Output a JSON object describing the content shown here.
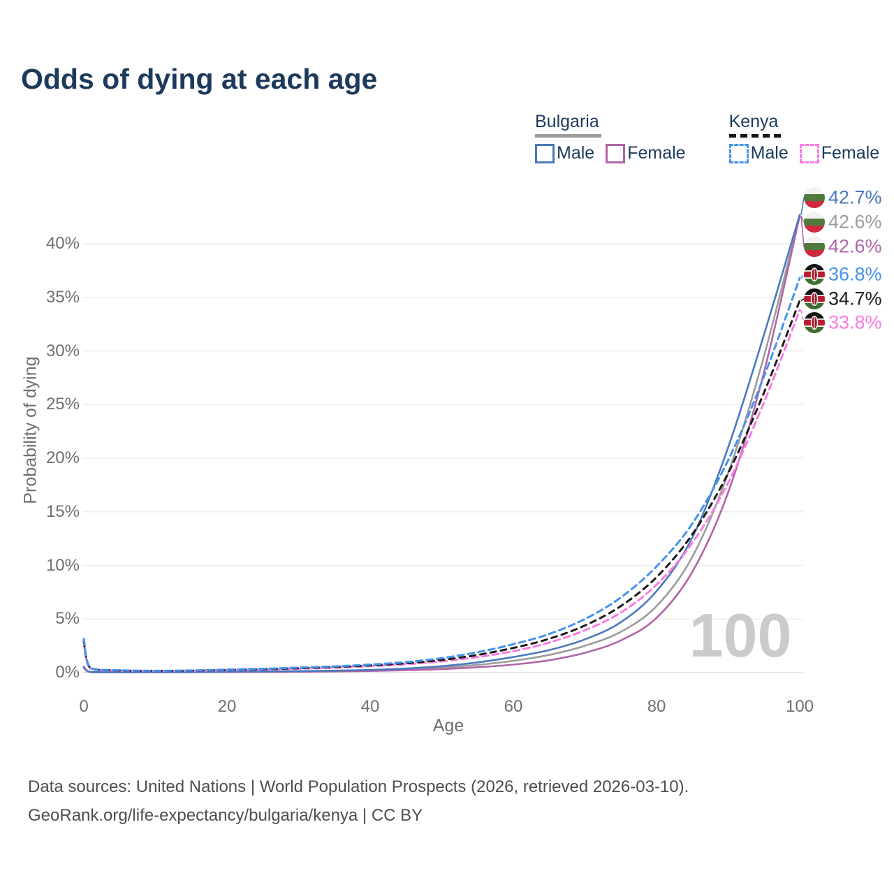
{
  "title": "Odds of dying at each age",
  "watermark": "100",
  "footer": {
    "line1": "Data sources: United Nations | World Population Prospects (2026, retrieved 2026-03-10).",
    "line2": "GeoRank.org/life-expectancy/bulgaria/kenya | CC BY"
  },
  "legend": {
    "groups": [
      {
        "country": "Bulgaria",
        "line_style": "solid",
        "underline_color": "#9c9c9c",
        "items": [
          {
            "label": "Male",
            "color": "#4a79bd",
            "style": "solid"
          },
          {
            "label": "Female",
            "color": "#b264a8",
            "style": "solid"
          }
        ]
      },
      {
        "country": "Kenya",
        "line_style": "dashed",
        "underline_color": "#161616",
        "items": [
          {
            "label": "Male",
            "color": "#4693ec",
            "style": "dashed"
          },
          {
            "label": "Female",
            "color": "#fb7ae0",
            "style": "dashed"
          }
        ]
      }
    ]
  },
  "axes": {
    "x": {
      "label": "Age",
      "ticks": [
        0,
        20,
        40,
        60,
        80,
        100
      ],
      "range": [
        0,
        100
      ]
    },
    "y": {
      "label": "Probability of dying",
      "tick_labels": [
        "0%",
        "5%",
        "10%",
        "15%",
        "20%",
        "25%",
        "30%",
        "35%",
        "40%"
      ],
      "tick_values": [
        0,
        5,
        10,
        15,
        20,
        25,
        30,
        35,
        40
      ],
      "range": [
        0,
        44.5
      ],
      "grid": true
    }
  },
  "chart_data": {
    "type": "line",
    "title": "Odds of dying at each age",
    "xlabel": "Age",
    "ylabel": "Probability of dying",
    "x": [
      0,
      1,
      5,
      10,
      15,
      20,
      25,
      30,
      35,
      40,
      45,
      50,
      55,
      60,
      65,
      70,
      75,
      80,
      85,
      90,
      95,
      100
    ],
    "unit": "percent",
    "series": [
      {
        "name": "Bulgaria — Male",
        "country": "Bulgaria",
        "sex": "male",
        "style": "solid",
        "color": "#4a79bd",
        "flag": "bulgaria-flag",
        "end_label": "42.7%",
        "values": [
          0.55,
          0.05,
          0.03,
          0.03,
          0.06,
          0.09,
          0.11,
          0.14,
          0.18,
          0.25,
          0.38,
          0.6,
          0.95,
          1.45,
          2.1,
          3.1,
          4.7,
          7.6,
          12.6,
          21.0,
          31.5,
          42.7
        ]
      },
      {
        "name": "Bulgaria — Both sexes",
        "country": "Bulgaria",
        "sex": "both",
        "style": "solid",
        "color": "#9c9c9c",
        "flag": "bulgaria-flag",
        "end_label": "42.6%",
        "values": [
          0.5,
          0.045,
          0.025,
          0.025,
          0.05,
          0.08,
          0.095,
          0.12,
          0.15,
          0.21,
          0.3,
          0.47,
          0.72,
          1.1,
          1.65,
          2.5,
          3.8,
          6.2,
          10.8,
          18.6,
          29.5,
          42.6
        ]
      },
      {
        "name": "Bulgaria — Female",
        "country": "Bulgaria",
        "sex": "female",
        "style": "solid",
        "color": "#b264a8",
        "flag": "bulgaria-flag",
        "end_label": "42.6%",
        "values": [
          0.45,
          0.04,
          0.02,
          0.02,
          0.035,
          0.05,
          0.06,
          0.08,
          0.11,
          0.15,
          0.22,
          0.33,
          0.5,
          0.75,
          1.15,
          1.85,
          3.0,
          5.1,
          9.4,
          16.8,
          28.0,
          42.6
        ]
      },
      {
        "name": "Kenya — Male",
        "country": "Kenya",
        "sex": "male",
        "style": "dashed",
        "color": "#4693ec",
        "flag": "kenya-flag",
        "end_label": "36.8%",
        "values": [
          3.15,
          0.4,
          0.22,
          0.17,
          0.2,
          0.28,
          0.36,
          0.46,
          0.58,
          0.75,
          0.98,
          1.35,
          1.9,
          2.65,
          3.6,
          5.0,
          7.0,
          9.9,
          13.9,
          19.8,
          27.6,
          36.8
        ]
      },
      {
        "name": "Kenya — Both sexes",
        "country": "Kenya",
        "sex": "both",
        "style": "dashed",
        "color": "#1c1c1c",
        "flag": "kenya-flag",
        "end_label": "34.7%",
        "values": [
          2.95,
          0.37,
          0.2,
          0.16,
          0.18,
          0.25,
          0.32,
          0.41,
          0.52,
          0.67,
          0.87,
          1.18,
          1.65,
          2.3,
          3.15,
          4.4,
          6.2,
          8.9,
          12.9,
          18.6,
          26.1,
          34.7
        ]
      },
      {
        "name": "Kenya — Female",
        "country": "Kenya",
        "sex": "female",
        "style": "dashed",
        "color": "#fb7ae0",
        "flag": "kenya-flag",
        "end_label": "33.8%",
        "values": [
          2.75,
          0.35,
          0.18,
          0.15,
          0.17,
          0.22,
          0.28,
          0.36,
          0.46,
          0.6,
          0.78,
          1.05,
          1.45,
          2.0,
          2.8,
          3.95,
          5.6,
          8.2,
          12.1,
          17.7,
          25.2,
          33.8
        ]
      }
    ]
  },
  "colors": {
    "title": "#1d3a5c",
    "grid": "#ededed",
    "axis_line": "#dedede",
    "tick_text": "#707070",
    "watermark": "#cbcbcb",
    "footer_text": "#4e4e4e"
  }
}
